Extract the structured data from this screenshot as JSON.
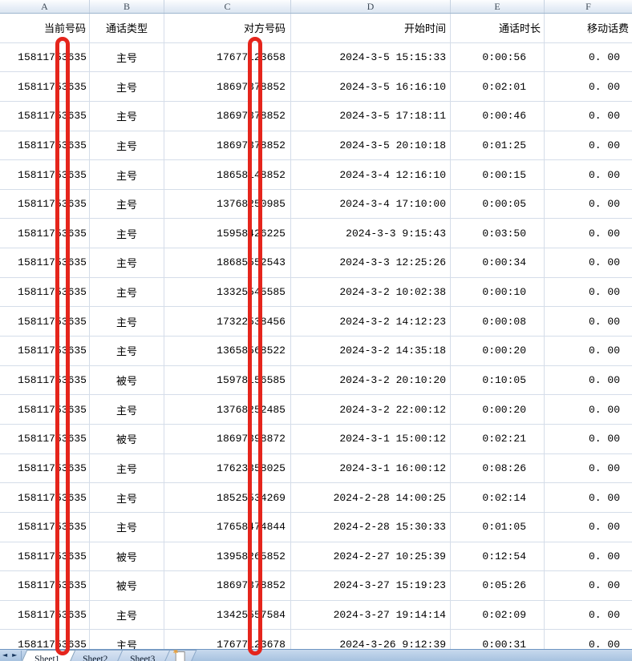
{
  "sheet": {
    "column_letters": [
      "A",
      "B",
      "C",
      "D",
      "E",
      "F"
    ],
    "header_labels": [
      "当前号码",
      "通话类型",
      "对方号码",
      "开始时间",
      "通话时长",
      "移动话费"
    ],
    "rows": [
      [
        "15811753635",
        "主号",
        "17677123658",
        "2024-3-5 15:15:33",
        "0:00:56",
        "0. 00"
      ],
      [
        "15811753635",
        "主号",
        "18697378852",
        "2024-3-5 16:16:10",
        "0:02:01",
        "0. 00"
      ],
      [
        "15811753635",
        "主号",
        "18697378852",
        "2024-3-5 17:18:11",
        "0:00:46",
        "0. 00"
      ],
      [
        "15811753635",
        "主号",
        "18697378852",
        "2024-3-5 20:10:18",
        "0:01:25",
        "0. 00"
      ],
      [
        "15811753635",
        "主号",
        "18658148852",
        "2024-3-4 12:16:10",
        "0:00:15",
        "0. 00"
      ],
      [
        "15811753635",
        "主号",
        "13768250985",
        "2024-3-4 17:10:00",
        "0:00:05",
        "0. 00"
      ],
      [
        "15811753635",
        "主号",
        "15958426225",
        "2024-3-3 9:15:43",
        "0:03:50",
        "0. 00"
      ],
      [
        "15811753635",
        "主号",
        "18685552543",
        "2024-3-3 12:25:26",
        "0:00:34",
        "0. 00"
      ],
      [
        "15811753635",
        "主号",
        "13325545585",
        "2024-3-2 10:02:38",
        "0:00:10",
        "0. 00"
      ],
      [
        "15811753635",
        "主号",
        "17322538456",
        "2024-3-2 14:12:23",
        "0:00:08",
        "0. 00"
      ],
      [
        "15811753635",
        "主号",
        "13658568522",
        "2024-3-2 14:35:18",
        "0:00:20",
        "0. 00"
      ],
      [
        "15811753635",
        "被号",
        "15978156585",
        "2024-3-2 20:10:20",
        "0:10:05",
        "0. 00"
      ],
      [
        "15811753635",
        "主号",
        "13768252485",
        "2024-3-2 22:00:12",
        "0:00:20",
        "0. 00"
      ],
      [
        "15811753635",
        "被号",
        "18697398872",
        "2024-3-1 15:00:12",
        "0:02:21",
        "0. 00"
      ],
      [
        "15811753635",
        "主号",
        "17623358025",
        "2024-3-1 16:00:12",
        "0:08:26",
        "0. 00"
      ],
      [
        "15811753635",
        "主号",
        "18525534269",
        "2024-2-28 14:00:25",
        "0:02:14",
        "0. 00"
      ],
      [
        "15811753635",
        "主号",
        "17658474844",
        "2024-2-28 15:30:33",
        "0:01:05",
        "0. 00"
      ],
      [
        "15811753635",
        "被号",
        "13958265852",
        "2024-2-27 10:25:39",
        "0:12:54",
        "0. 00"
      ],
      [
        "15811753635",
        "被号",
        "18697378852",
        "2024-3-27 15:19:23",
        "0:05:26",
        "0. 00"
      ],
      [
        "15811753635",
        "主号",
        "13425557584",
        "2024-3-27 19:14:14",
        "0:02:09",
        "0. 00"
      ],
      [
        "15811753635",
        "主号",
        "17677123678",
        "2024-3-26 9:12:39",
        "0:00:31",
        "0. 00"
      ]
    ]
  },
  "tab_bar": {
    "tabs": [
      "Sheet1",
      "Sheet2",
      "Sheet3"
    ],
    "active_tab": "Sheet1",
    "scroll_left_glyph": "◄",
    "scroll_right_glyph": "►"
  },
  "annotations": {
    "redaction_color": "#e5251c",
    "redaction_bars": [
      {
        "over_column": "A",
        "covers": "one digit of current number"
      },
      {
        "over_column": "C",
        "covers": "one digit of other-party number"
      }
    ]
  }
}
